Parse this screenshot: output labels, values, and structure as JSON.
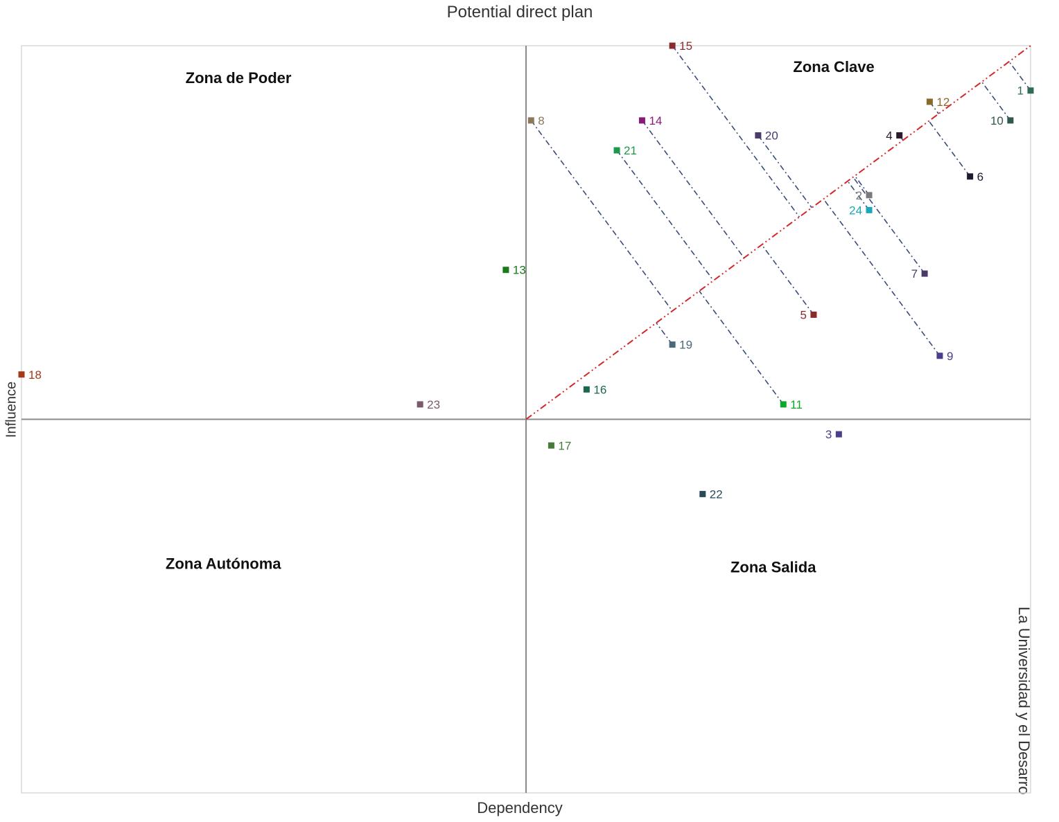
{
  "chart_data": {
    "type": "scatter",
    "title": "Potential direct plan",
    "xlabel": "Dependency",
    "ylabel": "Influence",
    "side_label": "La Universidad y el Desarro",
    "xlim": [
      -1,
      1
    ],
    "ylim": [
      -1,
      1
    ],
    "grid": false,
    "legend": "none",
    "zones": [
      {
        "name": "Zona de Poder",
        "x": -0.57,
        "y": 0.9
      },
      {
        "name": "Zona Clave",
        "x": 0.61,
        "y": 0.93
      },
      {
        "name": "Zona Autónoma",
        "x": -0.6,
        "y": -0.4
      },
      {
        "name": "Zona Salida",
        "x": 0.49,
        "y": -0.41
      }
    ],
    "points": [
      {
        "id": "1",
        "x": 1.0,
        "y": 0.88,
        "color": "#2f6b5a",
        "label_side": "left"
      },
      {
        "id": "2",
        "x": 0.68,
        "y": 0.6,
        "color": "#7a7a7a",
        "label_side": "left"
      },
      {
        "id": "3",
        "x": 0.62,
        "y": -0.04,
        "color": "#4b3f8a",
        "label_side": "left"
      },
      {
        "id": "4",
        "x": 0.74,
        "y": 0.76,
        "color": "#2b1a2a",
        "label_side": "left"
      },
      {
        "id": "5",
        "x": 0.57,
        "y": 0.28,
        "color": "#8b2a2a",
        "label_side": "left"
      },
      {
        "id": "6",
        "x": 0.88,
        "y": 0.65,
        "color": "#1c1a2c",
        "label_side": "right"
      },
      {
        "id": "7",
        "x": 0.79,
        "y": 0.39,
        "color": "#4a3a6a",
        "label_side": "left"
      },
      {
        "id": "8",
        "x": 0.01,
        "y": 0.8,
        "color": "#8a7a5a",
        "label_side": "right"
      },
      {
        "id": "9",
        "x": 0.82,
        "y": 0.17,
        "color": "#4a3f8a",
        "label_side": "right"
      },
      {
        "id": "10",
        "x": 0.96,
        "y": 0.8,
        "color": "#2f5a4a",
        "label_side": "left"
      },
      {
        "id": "11",
        "x": 0.51,
        "y": 0.04,
        "color": "#0aa82a",
        "label_side": "right"
      },
      {
        "id": "12",
        "x": 0.8,
        "y": 0.85,
        "color": "#8a6a2a",
        "label_side": "right"
      },
      {
        "id": "13",
        "x": -0.04,
        "y": 0.4,
        "color": "#1a7a1a",
        "label_side": "right"
      },
      {
        "id": "14",
        "x": 0.23,
        "y": 0.8,
        "color": "#8a1a7a",
        "label_side": "right"
      },
      {
        "id": "15",
        "x": 0.29,
        "y": 1.0,
        "color": "#8b2a2a",
        "label_side": "right"
      },
      {
        "id": "16",
        "x": 0.12,
        "y": 0.08,
        "color": "#1a6a4a",
        "label_side": "right"
      },
      {
        "id": "17",
        "x": 0.05,
        "y": -0.07,
        "color": "#4a7a3a",
        "label_side": "right"
      },
      {
        "id": "18",
        "x": -1.0,
        "y": 0.12,
        "color": "#a33a1a",
        "label_side": "right"
      },
      {
        "id": "19",
        "x": 0.29,
        "y": 0.2,
        "color": "#4a6a7a",
        "label_side": "right"
      },
      {
        "id": "20",
        "x": 0.46,
        "y": 0.76,
        "color": "#4a3a6a",
        "label_side": "right"
      },
      {
        "id": "21",
        "x": 0.18,
        "y": 0.72,
        "color": "#1a9a4a",
        "label_side": "right"
      },
      {
        "id": "22",
        "x": 0.35,
        "y": -0.2,
        "color": "#2a4a5a",
        "label_side": "right"
      },
      {
        "id": "23",
        "x": -0.21,
        "y": 0.04,
        "color": "#7a5a6a",
        "label_side": "right"
      },
      {
        "id": "24",
        "x": 0.68,
        "y": 0.56,
        "color": "#1aa8b8",
        "label_side": "left"
      }
    ],
    "projection_from": [
      "1",
      "2",
      "4",
      "5",
      "6",
      "7",
      "8",
      "9",
      "10",
      "11",
      "12",
      "14",
      "15",
      "19",
      "20",
      "21",
      "24"
    ],
    "colors": {
      "axis": "#8a8a8a",
      "frame": "#d9d9d9",
      "diagonal": "#d62728",
      "projection": "#3a4a7a",
      "text": "#333333"
    }
  }
}
